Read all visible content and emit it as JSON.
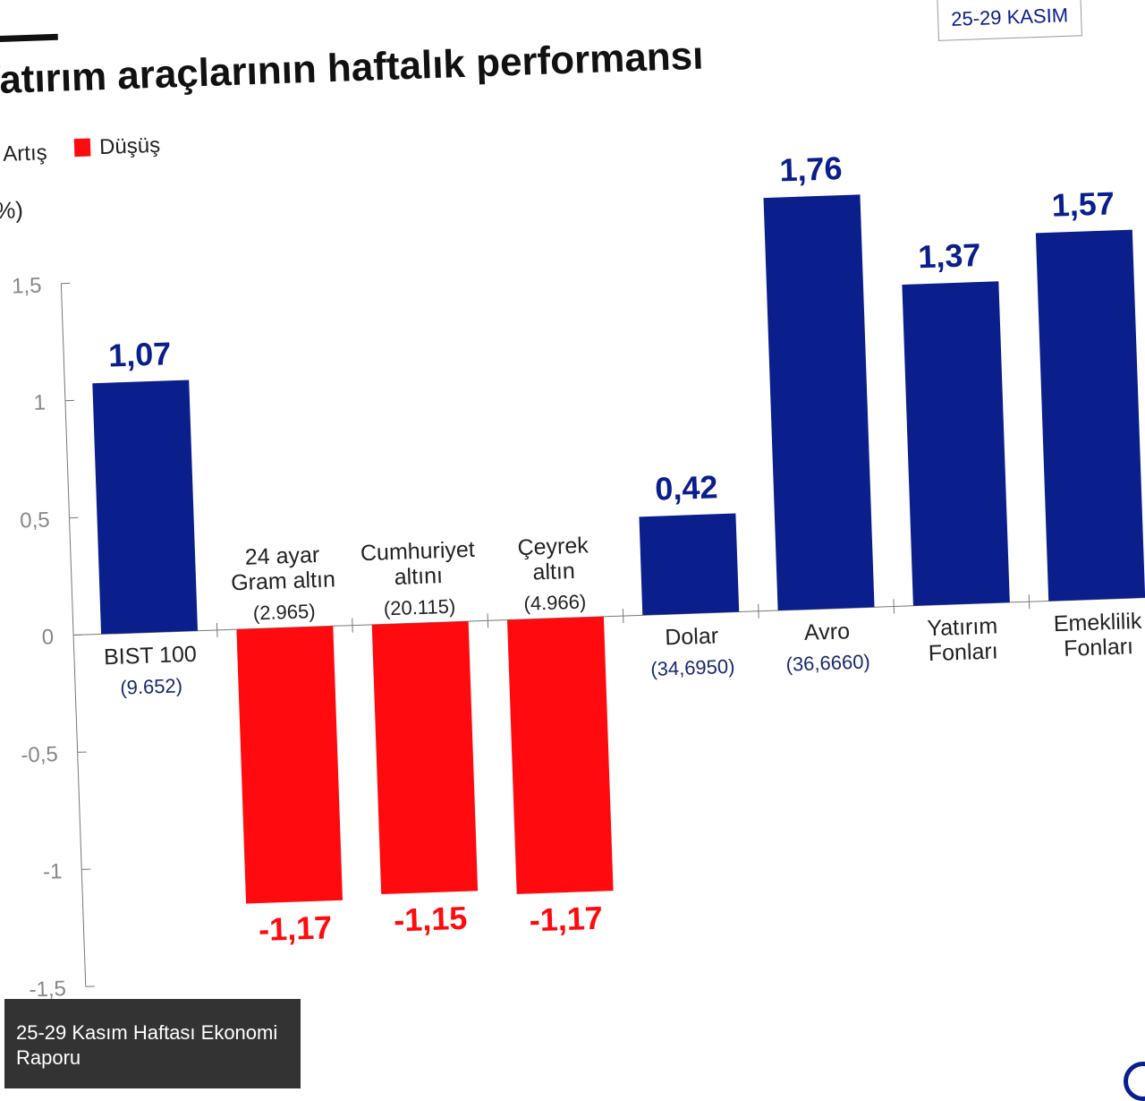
{
  "chart_data": {
    "type": "bar",
    "title": "Yatırım araçlarının haftalık performansı",
    "date_badge": "25-29 KASIM",
    "ylabel": "(%)",
    "ylim": [
      -1.5,
      1.5
    ],
    "yticks": [
      1.5,
      1,
      0.5,
      0,
      -0.5,
      -1,
      -1.5
    ],
    "ytick_labels": [
      "1,5",
      "1",
      "0,5",
      "0",
      "-0,5",
      "-1",
      "-1,5"
    ],
    "grid": false,
    "legend": {
      "position": "top-left",
      "items": [
        {
          "label": "Artış",
          "color": "#0a1e8c"
        },
        {
          "label": "Düşüş",
          "color": "#ff0a0f"
        }
      ]
    },
    "categories": [
      {
        "name": [
          "BIST 100"
        ],
        "sub": "(9.652)"
      },
      {
        "name": [
          "24 ayar",
          "Gram altın"
        ],
        "sub": "(2.965)"
      },
      {
        "name": [
          "Cumhuriyet",
          "altını"
        ],
        "sub": "(20.115)"
      },
      {
        "name": [
          "Çeyrek",
          "altın"
        ],
        "sub": "(4.966)"
      },
      {
        "name": [
          "Dolar"
        ],
        "sub": "(34,6950)"
      },
      {
        "name": [
          "Avro"
        ],
        "sub": "(36,6660)"
      },
      {
        "name": [
          "Yatırım",
          "Fonları"
        ],
        "sub": ""
      },
      {
        "name": [
          "Emeklilik",
          "Fonları"
        ],
        "sub": ""
      }
    ],
    "values": [
      1.07,
      -1.17,
      -1.15,
      -1.17,
      0.42,
      1.76,
      1.37,
      1.57
    ],
    "value_labels": [
      "1,07",
      "-1,17",
      "-1,15",
      "-1,17",
      "0,42",
      "1,76",
      "1,37",
      "1,57"
    ],
    "colors": {
      "positive": "#0a1e8c",
      "negative": "#ff0a0f"
    }
  },
  "caption": "25-29 Kasım Haftası Ekonomi Raporu"
}
